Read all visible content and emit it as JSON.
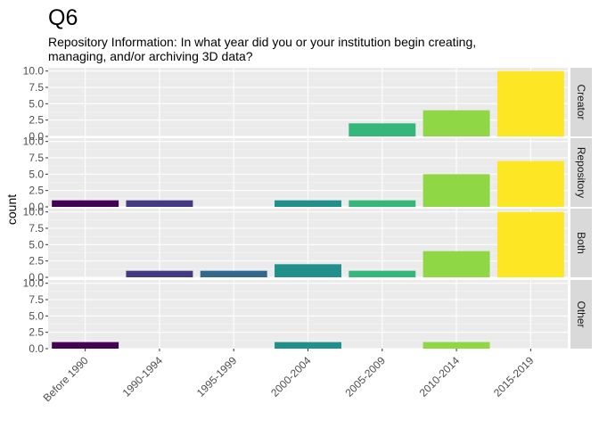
{
  "chart_data": {
    "type": "bar",
    "title": "Q6",
    "subtitle_lines": [
      "Repository Information: In what year did you or your institution begin creating,",
      "managing, and/or archiving 3D data?"
    ],
    "xlabel": "",
    "ylabel": "count",
    "categories": [
      "Before 1990",
      "1990-1994",
      "1995-1999",
      "2000-2004",
      "2005-2009",
      "2010-2014",
      "2015-2019"
    ],
    "category_colors": [
      "#440154",
      "#443A83",
      "#31688E",
      "#21908C",
      "#35B779",
      "#8FD744",
      "#FDE725"
    ],
    "ylim": [
      0,
      10.5
    ],
    "y_ticks": [
      "0.0",
      "2.5",
      "5.0",
      "7.5",
      "10.0"
    ],
    "grid": true,
    "facets": [
      {
        "name": "Creator",
        "values": [
          0,
          0,
          0,
          0,
          2,
          4,
          10
        ]
      },
      {
        "name": "Repository",
        "values": [
          1,
          1,
          0,
          1,
          1,
          5,
          7
        ]
      },
      {
        "name": "Both",
        "values": [
          0,
          1,
          1,
          2,
          1,
          4,
          10
        ]
      },
      {
        "name": "Other",
        "values": [
          1,
          0,
          0,
          1,
          0,
          1,
          0
        ]
      }
    ]
  }
}
